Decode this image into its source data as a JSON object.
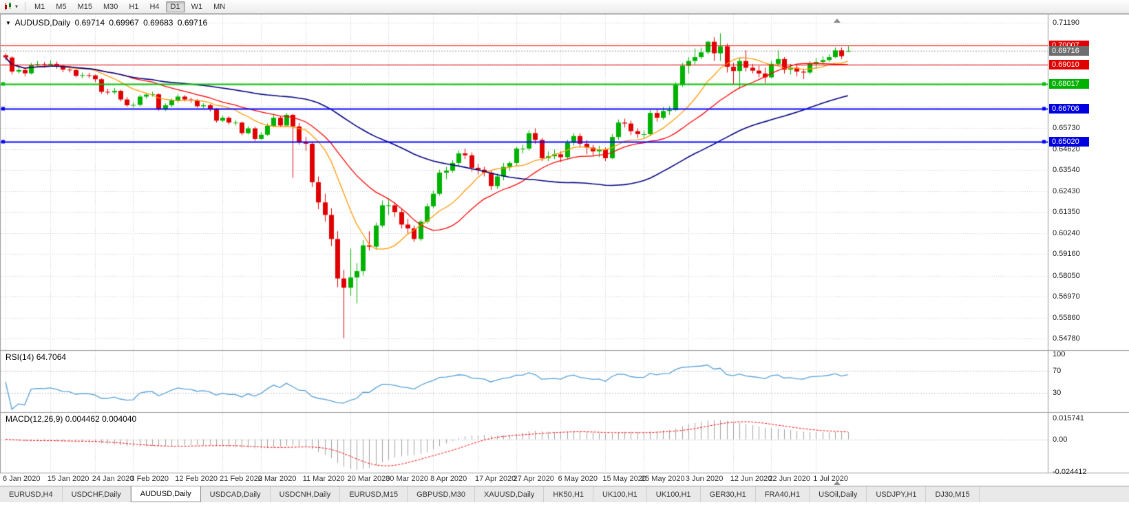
{
  "toolbar": {
    "timeframes": [
      "M1",
      "M5",
      "M15",
      "M30",
      "H1",
      "H4",
      "D1",
      "W1",
      "MN"
    ],
    "active_timeframe": "D1"
  },
  "chart": {
    "title": "AUDUSD,Daily",
    "symbol": "AUDUSD",
    "period": "Daily",
    "open": "0.69714",
    "high": "0.69967",
    "low": "0.69683",
    "close": "0.69716"
  },
  "price_axis": {
    "badges": [
      {
        "value": "0.70007",
        "color": "#e00000",
        "kind": "resistance-label"
      },
      {
        "value": "0.69716",
        "color": "#6e6e6e",
        "kind": "current-price-label"
      },
      {
        "value": "0.69010",
        "color": "#e00000",
        "kind": "resistance-label"
      },
      {
        "value": "0.68017",
        "color": "#00b200",
        "kind": "support-label"
      },
      {
        "value": "0.66706",
        "color": "#0000e0",
        "kind": "support-label"
      },
      {
        "value": "0.65020",
        "color": "#0000e0",
        "kind": "support-label"
      }
    ]
  },
  "indicators": {
    "rsi": {
      "label": "RSI(14)",
      "value": "64.7064",
      "levels": [
        100,
        70,
        30
      ],
      "color": "#559fd6"
    },
    "macd": {
      "label": "MACD(12,26,9)",
      "value_main": "0.004462",
      "value_signal": "0.004040",
      "scale": {
        "max": "0.015741",
        "zero": "0.00",
        "min": "-0.024412"
      }
    }
  },
  "window": {
    "tabs": [
      "EURUSD,H4",
      "USDCHF,Daily",
      "AUDUSD,Daily",
      "USDCAD,Daily",
      "USDCNH,Daily",
      "EURUSD,M15",
      "GBPUSD,M30",
      "XAUUSD,Daily",
      "HK50,H1",
      "UK100,H1",
      "UK100,H1",
      "GER30,H1",
      "FRA40,H1",
      "USOil,Daily",
      "USDJPY,H1",
      "DJ30,M15"
    ],
    "active_tab_index": 2
  },
  "chart_data": {
    "type": "candlestick",
    "title": "AUDUSD Daily",
    "y_axis_grid": [
      0.7119,
      0.7011,
      0.6903,
      0.6795,
      0.6687,
      0.6573,
      0.6462,
      0.6354,
      0.6243,
      0.6135,
      0.6024,
      0.5916,
      0.5805,
      0.5697,
      0.5586,
      0.5478
    ],
    "y_range": [
      0.5478,
      0.7119
    ],
    "current_price": 0.69716,
    "levels": [
      {
        "price": 0.70007,
        "color": "#ee0000",
        "width": 1,
        "selected": false
      },
      {
        "price": 0.6901,
        "color": "#ee0000",
        "width": 1,
        "selected": false
      },
      {
        "price": 0.68017,
        "color": "#00c000",
        "width": 2,
        "selected": true
      },
      {
        "price": 0.66706,
        "color": "#0000ff",
        "width": 2,
        "selected": true
      },
      {
        "price": 0.6502,
        "color": "#0000ff",
        "width": 2,
        "selected": true
      }
    ],
    "moving_averages": [
      {
        "type": "sma",
        "period": 10,
        "color": "#ff9800"
      },
      {
        "type": "sma",
        "period": 20,
        "color": "#ff0000"
      },
      {
        "type": "sma",
        "period": 50,
        "color": "#00007f"
      }
    ],
    "colors": {
      "bull": "#00b200",
      "bear": "#e00000",
      "macd_histogram": "#a0a0a0",
      "macd_signal": "#ff0000"
    },
    "x_ticks": [
      {
        "i": 0,
        "label": "6 Jan 2020"
      },
      {
        "i": 7,
        "label": "15 Jan 2020"
      },
      {
        "i": 14,
        "label": "24 Jan 2020"
      },
      {
        "i": 20,
        "label": "3 Feb 2020"
      },
      {
        "i": 27,
        "label": "12 Feb 2020"
      },
      {
        "i": 34,
        "label": "21 Feb 2020"
      },
      {
        "i": 40,
        "label": "2 Mar 2020"
      },
      {
        "i": 47,
        "label": "11 Mar 2020"
      },
      {
        "i": 54,
        "label": "20 Mar 2020"
      },
      {
        "i": 60,
        "label": "30 Mar 2020"
      },
      {
        "i": 67,
        "label": "8 Apr 2020"
      },
      {
        "i": 74,
        "label": "17 Apr 2020"
      },
      {
        "i": 80,
        "label": "27 Apr 2020"
      },
      {
        "i": 87,
        "label": "6 May 2020"
      },
      {
        "i": 94,
        "label": "15 May 2020"
      },
      {
        "i": 100,
        "label": "25 May 2020"
      },
      {
        "i": 107,
        "label": "3 Jun 2020"
      },
      {
        "i": 114,
        "label": "12 Jun 2020"
      },
      {
        "i": 120,
        "label": "22 Jun 2020"
      },
      {
        "i": 127,
        "label": "1 Jul 2020"
      }
    ],
    "candles": [
      [
        0.695,
        0.696,
        0.6925,
        0.6938
      ],
      [
        0.6938,
        0.6945,
        0.685,
        0.6865
      ],
      [
        0.6865,
        0.689,
        0.6855,
        0.6873
      ],
      [
        0.6873,
        0.688,
        0.684,
        0.6856
      ],
      [
        0.6856,
        0.691,
        0.685,
        0.69
      ],
      [
        0.69,
        0.692,
        0.689,
        0.6903
      ],
      [
        0.6903,
        0.6915,
        0.6885,
        0.6902
      ],
      [
        0.6902,
        0.6925,
        0.6895,
        0.6905
      ],
      [
        0.6905,
        0.6917,
        0.688,
        0.6895
      ],
      [
        0.6895,
        0.69,
        0.6862,
        0.6875
      ],
      [
        0.6875,
        0.6888,
        0.686,
        0.6873
      ],
      [
        0.6873,
        0.6878,
        0.6835,
        0.6843
      ],
      [
        0.6843,
        0.686,
        0.683,
        0.6846
      ],
      [
        0.6846,
        0.6858,
        0.6832,
        0.6845
      ],
      [
        0.6845,
        0.685,
        0.681,
        0.6825
      ],
      [
        0.6825,
        0.683,
        0.675,
        0.676
      ],
      [
        0.676,
        0.6775,
        0.6745,
        0.6757
      ],
      [
        0.6757,
        0.678,
        0.6748,
        0.6765
      ],
      [
        0.6765,
        0.677,
        0.671,
        0.672
      ],
      [
        0.672,
        0.6733,
        0.6682,
        0.669
      ],
      [
        0.669,
        0.6705,
        0.6678,
        0.6692
      ],
      [
        0.6692,
        0.6745,
        0.6685,
        0.6735
      ],
      [
        0.6735,
        0.6755,
        0.6725,
        0.6745
      ],
      [
        0.6745,
        0.676,
        0.6735,
        0.6747
      ],
      [
        0.6747,
        0.6752,
        0.6662,
        0.667
      ],
      [
        0.667,
        0.67,
        0.666,
        0.669
      ],
      [
        0.669,
        0.6725,
        0.668,
        0.6715
      ],
      [
        0.6715,
        0.6748,
        0.6705,
        0.6735
      ],
      [
        0.6735,
        0.6742,
        0.671,
        0.672
      ],
      [
        0.672,
        0.673,
        0.6703,
        0.6715
      ],
      [
        0.6715,
        0.6722,
        0.6677,
        0.6685
      ],
      [
        0.6685,
        0.67,
        0.6675,
        0.669
      ],
      [
        0.669,
        0.6697,
        0.6658,
        0.667
      ],
      [
        0.667,
        0.6675,
        0.66,
        0.661
      ],
      [
        0.661,
        0.6637,
        0.6602,
        0.6625
      ],
      [
        0.6625,
        0.6632,
        0.659,
        0.66
      ],
      [
        0.66,
        0.6612,
        0.6585,
        0.66
      ],
      [
        0.66,
        0.6605,
        0.6535,
        0.6545
      ],
      [
        0.6545,
        0.6582,
        0.6538,
        0.657
      ],
      [
        0.657,
        0.6578,
        0.6505,
        0.6515
      ],
      [
        0.6515,
        0.655,
        0.651,
        0.6537
      ],
      [
        0.6537,
        0.6595,
        0.653,
        0.6583
      ],
      [
        0.6583,
        0.6638,
        0.6575,
        0.6625
      ],
      [
        0.6625,
        0.6633,
        0.6578,
        0.6585
      ],
      [
        0.6585,
        0.665,
        0.658,
        0.664
      ],
      [
        0.664,
        0.6645,
        0.6313,
        0.658
      ],
      [
        0.658,
        0.6598,
        0.6485,
        0.65
      ],
      [
        0.65,
        0.6525,
        0.6455,
        0.649
      ],
      [
        0.649,
        0.6495,
        0.6265,
        0.629
      ],
      [
        0.629,
        0.632,
        0.615,
        0.6185
      ],
      [
        0.6185,
        0.623,
        0.6085,
        0.612
      ],
      [
        0.612,
        0.6155,
        0.5958,
        0.5995
      ],
      [
        0.5995,
        0.6035,
        0.5745,
        0.579
      ],
      [
        0.579,
        0.5835,
        0.548,
        0.5742
      ],
      [
        0.5742,
        0.5945,
        0.57,
        0.5795
      ],
      [
        0.5795,
        0.587,
        0.566,
        0.5828
      ],
      [
        0.5828,
        0.599,
        0.5805,
        0.5962
      ],
      [
        0.5962,
        0.6035,
        0.5935,
        0.5955
      ],
      [
        0.5955,
        0.608,
        0.594,
        0.6065
      ],
      [
        0.6065,
        0.6195,
        0.6055,
        0.617
      ],
      [
        0.617,
        0.6205,
        0.612,
        0.617
      ],
      [
        0.617,
        0.6185,
        0.611,
        0.6135
      ],
      [
        0.6135,
        0.615,
        0.605,
        0.607
      ],
      [
        0.607,
        0.61,
        0.602,
        0.605
      ],
      [
        0.605,
        0.6065,
        0.598,
        0.5995
      ],
      [
        0.5995,
        0.6095,
        0.5985,
        0.6085
      ],
      [
        0.6085,
        0.618,
        0.6075,
        0.6165
      ],
      [
        0.6165,
        0.6245,
        0.6155,
        0.623
      ],
      [
        0.623,
        0.6355,
        0.622,
        0.634
      ],
      [
        0.634,
        0.637,
        0.6305,
        0.635
      ],
      [
        0.635,
        0.6405,
        0.634,
        0.639
      ],
      [
        0.639,
        0.6455,
        0.6375,
        0.644
      ],
      [
        0.644,
        0.6465,
        0.641,
        0.643
      ],
      [
        0.643,
        0.6445,
        0.6345,
        0.6365
      ],
      [
        0.6365,
        0.6385,
        0.633,
        0.6355
      ],
      [
        0.6355,
        0.637,
        0.632,
        0.634
      ],
      [
        0.634,
        0.635,
        0.625,
        0.627
      ],
      [
        0.627,
        0.6335,
        0.6255,
        0.632
      ],
      [
        0.632,
        0.639,
        0.63,
        0.637
      ],
      [
        0.637,
        0.64,
        0.635,
        0.639
      ],
      [
        0.639,
        0.6475,
        0.6375,
        0.6465
      ],
      [
        0.6465,
        0.6485,
        0.644,
        0.6465
      ],
      [
        0.6465,
        0.656,
        0.6455,
        0.6545
      ],
      [
        0.6545,
        0.657,
        0.649,
        0.651
      ],
      [
        0.651,
        0.652,
        0.64,
        0.6415
      ],
      [
        0.6415,
        0.645,
        0.64,
        0.6425
      ],
      [
        0.6425,
        0.646,
        0.641,
        0.6435
      ],
      [
        0.6435,
        0.645,
        0.6395,
        0.642
      ],
      [
        0.642,
        0.651,
        0.641,
        0.6495
      ],
      [
        0.6495,
        0.6545,
        0.648,
        0.653
      ],
      [
        0.653,
        0.6545,
        0.647,
        0.649
      ],
      [
        0.649,
        0.651,
        0.6435,
        0.647
      ],
      [
        0.647,
        0.6485,
        0.643,
        0.645
      ],
      [
        0.645,
        0.648,
        0.642,
        0.646
      ],
      [
        0.646,
        0.647,
        0.64,
        0.6415
      ],
      [
        0.6415,
        0.654,
        0.641,
        0.6525
      ],
      [
        0.6525,
        0.6616,
        0.651,
        0.66
      ],
      [
        0.66,
        0.662,
        0.6575,
        0.6595
      ],
      [
        0.6595,
        0.661,
        0.6535,
        0.6555
      ],
      [
        0.6555,
        0.657,
        0.652,
        0.654
      ],
      [
        0.654,
        0.656,
        0.6515,
        0.654
      ],
      [
        0.654,
        0.6665,
        0.653,
        0.665
      ],
      [
        0.665,
        0.667,
        0.6605,
        0.6625
      ],
      [
        0.6625,
        0.668,
        0.6615,
        0.666
      ],
      [
        0.666,
        0.6685,
        0.664,
        0.6665
      ],
      [
        0.6665,
        0.681,
        0.666,
        0.6795
      ],
      [
        0.6795,
        0.691,
        0.6785,
        0.6895
      ],
      [
        0.6895,
        0.694,
        0.6855,
        0.692
      ],
      [
        0.692,
        0.6985,
        0.69,
        0.694
      ],
      [
        0.694,
        0.699,
        0.693,
        0.6965
      ],
      [
        0.6965,
        0.7025,
        0.6955,
        0.702
      ],
      [
        0.702,
        0.7043,
        0.692,
        0.696
      ],
      [
        0.696,
        0.7064,
        0.692,
        0.6996
      ],
      [
        0.6996,
        0.701,
        0.686,
        0.689
      ],
      [
        0.689,
        0.691,
        0.68,
        0.6868
      ],
      [
        0.6868,
        0.6935,
        0.6775,
        0.692
      ],
      [
        0.692,
        0.6975,
        0.6865,
        0.6885
      ],
      [
        0.6885,
        0.6905,
        0.6855,
        0.687
      ],
      [
        0.687,
        0.6895,
        0.6835,
        0.6855
      ],
      [
        0.6855,
        0.6885,
        0.6805,
        0.6835
      ],
      [
        0.6835,
        0.692,
        0.683,
        0.6905
      ],
      [
        0.6905,
        0.6975,
        0.69,
        0.693
      ],
      [
        0.693,
        0.694,
        0.6855,
        0.6875
      ],
      [
        0.6875,
        0.6905,
        0.685,
        0.6885
      ],
      [
        0.6885,
        0.69,
        0.684,
        0.6865
      ],
      [
        0.6865,
        0.688,
        0.6825,
        0.686
      ],
      [
        0.686,
        0.692,
        0.685,
        0.6905
      ],
      [
        0.6905,
        0.6935,
        0.688,
        0.6915
      ],
      [
        0.6915,
        0.6945,
        0.69,
        0.6925
      ],
      [
        0.6925,
        0.6955,
        0.6915,
        0.694
      ],
      [
        0.694,
        0.699,
        0.6935,
        0.6975
      ],
      [
        0.6975,
        0.699,
        0.693,
        0.6945
      ],
      [
        0.69714,
        0.69967,
        0.69683,
        0.69716
      ]
    ]
  }
}
